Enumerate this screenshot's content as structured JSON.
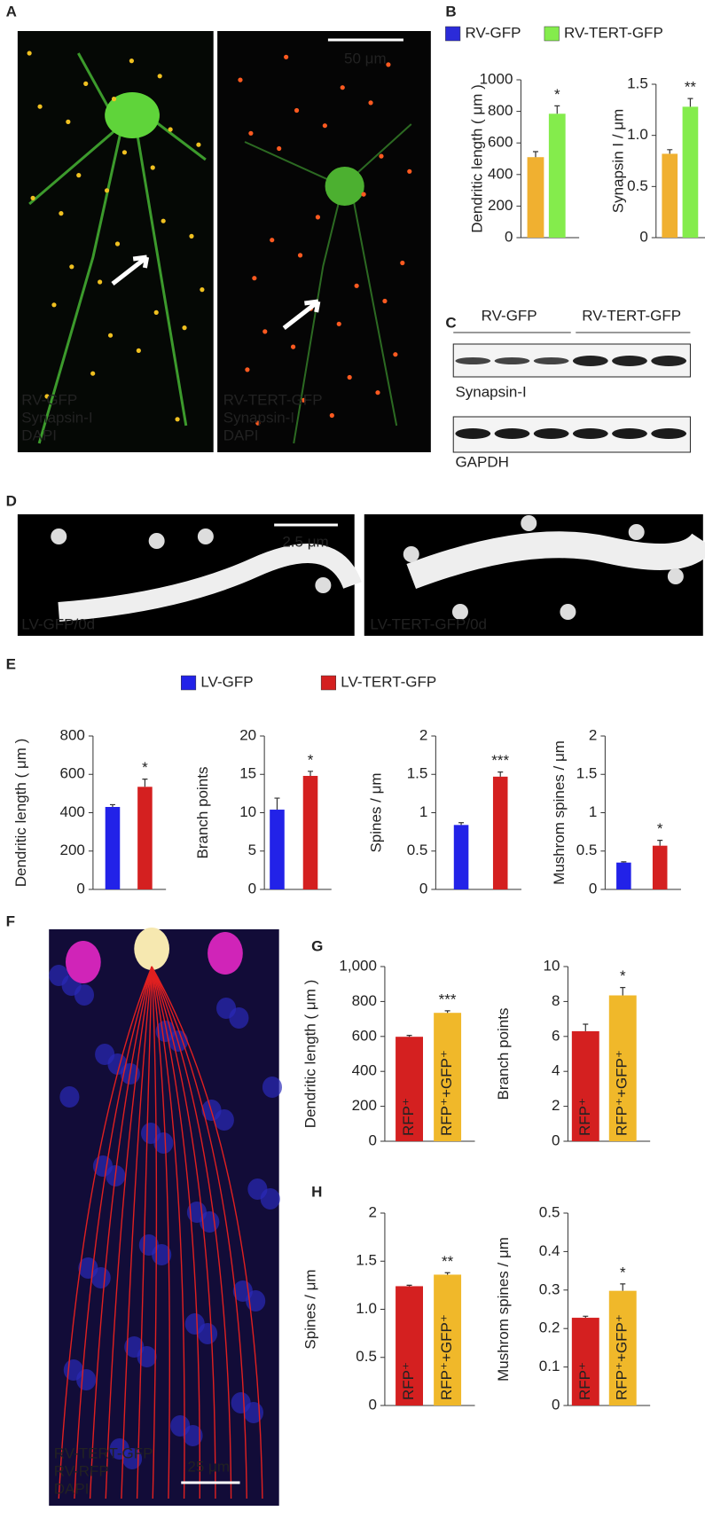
{
  "panel_labels": [
    "A",
    "B",
    "C",
    "D",
    "E",
    "F",
    "G",
    "H"
  ],
  "figure_a": {
    "left_labels": [
      "RV-GFP",
      "Synapsin-I",
      "DAPI"
    ],
    "right_labels": [
      "RV-TERT-GFP",
      "Synapsin-I",
      "DAPI"
    ],
    "scale_bar": "50 μm"
  },
  "legend_b": [
    {
      "name": "RV-GFP",
      "color": "#2b2bd9"
    },
    {
      "name": "RV-TERT-GFP",
      "color": "#84ec4c"
    }
  ],
  "figure_c": {
    "lanes": [
      "RV-GFP",
      "RV-TERT-GFP"
    ],
    "blots": [
      "Synapsin-I",
      "GAPDH"
    ]
  },
  "figure_d": {
    "labels": [
      "LV-GFP/0d",
      "LV-TERT-GFP/0d"
    ],
    "scale_bar": "2.5 μm"
  },
  "legend_e": [
    {
      "name": "LV-GFP",
      "color": "#2222e8"
    },
    {
      "name": "LV-TERT-GFP",
      "color": "#d42020"
    }
  ],
  "figure_f": {
    "labels": [
      "RV-TERT-GFP",
      "RV-RFP",
      "DAPI"
    ],
    "scale_bar": "25 μm"
  },
  "chart_data": [
    {
      "type": "bar",
      "ylabel": "Dendritic length ( μm )",
      "values": [
        510,
        785
      ],
      "errors": [
        35,
        50
      ],
      "annotations": [
        null,
        "*"
      ],
      "colors": [
        "#f0b030",
        "#84ec4c"
      ],
      "ylim": [
        0,
        1000
      ],
      "yticks": [
        0,
        200,
        400,
        600,
        800,
        1000
      ]
    },
    {
      "type": "bar",
      "ylabel": "Synapsin I / μm",
      "values": [
        0.82,
        1.28
      ],
      "errors": [
        0.04,
        0.08
      ],
      "annotations": [
        null,
        "**"
      ],
      "colors": [
        "#f0b030",
        "#84ec4c"
      ],
      "ylim": [
        0,
        1.5
      ],
      "yticks": [
        0,
        0.5,
        {
          "value": 1,
          "label": "1.0"
        },
        1.5
      ]
    },
    {
      "type": "bar",
      "ylabel": "Dendritic length ( μm )",
      "values": [
        430,
        535
      ],
      "errors": [
        12,
        40
      ],
      "annotations": [
        null,
        "*"
      ],
      "colors": [
        "#2222e8",
        "#d42020"
      ],
      "ylim": [
        0,
        800
      ],
      "yticks": [
        0,
        200,
        400,
        600,
        800
      ]
    },
    {
      "type": "bar",
      "ylabel": "Branch points",
      "values": [
        10.4,
        14.8
      ],
      "errors": [
        1.5,
        0.6
      ],
      "annotations": [
        null,
        "*"
      ],
      "colors": [
        "#2222e8",
        "#d42020"
      ],
      "ylim": [
        0,
        20
      ],
      "yticks": [
        0,
        5,
        10,
        15,
        20
      ]
    },
    {
      "type": "bar",
      "ylabel": "Spines / μm",
      "values": [
        0.84,
        1.47
      ],
      "errors": [
        0.03,
        0.06
      ],
      "annotations": [
        null,
        "***"
      ],
      "colors": [
        "#2222e8",
        "#d42020"
      ],
      "ylim": [
        0,
        2
      ],
      "yticks": [
        0,
        0.5,
        1,
        1.5,
        2
      ]
    },
    {
      "type": "bar",
      "ylabel": "Mushrom spines / μm",
      "values": [
        0.35,
        0.57
      ],
      "errors": [
        0.01,
        0.07
      ],
      "annotations": [
        null,
        "*"
      ],
      "colors": [
        "#2222e8",
        "#d42020"
      ],
      "ylim": [
        0,
        2
      ],
      "yticks": [
        0,
        0.5,
        1,
        1.5,
        2
      ]
    },
    {
      "type": "bar",
      "ylabel": "Dendritic length ( μm )",
      "categories": [
        "RFP⁺",
        "RFP⁺+GFP⁺"
      ],
      "values": [
        598,
        735
      ],
      "errors": [
        8,
        12
      ],
      "annotations": [
        null,
        "***"
      ],
      "colors": [
        "#d42020",
        "#f0b82a"
      ],
      "ylim": [
        0,
        1000
      ],
      "yticks": [
        0,
        200,
        400,
        600,
        800,
        {
          "value": 1000,
          "label": "1,000"
        }
      ]
    },
    {
      "type": "bar",
      "ylabel": "Branch points",
      "categories": [
        "RFP⁺",
        "RFP⁺+GFP⁺"
      ],
      "values": [
        6.3,
        8.35
      ],
      "errors": [
        0.4,
        0.45
      ],
      "annotations": [
        null,
        "*"
      ],
      "colors": [
        "#d42020",
        "#f0b82a"
      ],
      "ylim": [
        0,
        10
      ],
      "yticks": [
        0,
        2,
        4,
        6,
        8,
        10
      ]
    },
    {
      "type": "bar",
      "ylabel": "Spines / μm",
      "categories": [
        "RFP⁺",
        "RFP⁺+GFP⁺"
      ],
      "values": [
        1.24,
        1.36
      ],
      "errors": [
        0.01,
        0.02
      ],
      "annotations": [
        null,
        "**"
      ],
      "colors": [
        "#d42020",
        "#f0b82a"
      ],
      "ylim": [
        0,
        2
      ],
      "yticks": [
        0,
        0.5,
        {
          "value": 1,
          "label": "1.0"
        },
        1.5,
        2
      ]
    },
    {
      "type": "bar",
      "ylabel": "Mushrom spines / μm",
      "categories": [
        "RFP⁺",
        "RFP⁺+GFP⁺"
      ],
      "values": [
        0.228,
        0.298
      ],
      "errors": [
        0.004,
        0.018
      ],
      "annotations": [
        null,
        "*"
      ],
      "colors": [
        "#d42020",
        "#f0b82a"
      ],
      "ylim": [
        0,
        0.5
      ],
      "yticks": [
        0,
        0.1,
        0.2,
        0.3,
        0.4,
        0.5
      ]
    }
  ]
}
